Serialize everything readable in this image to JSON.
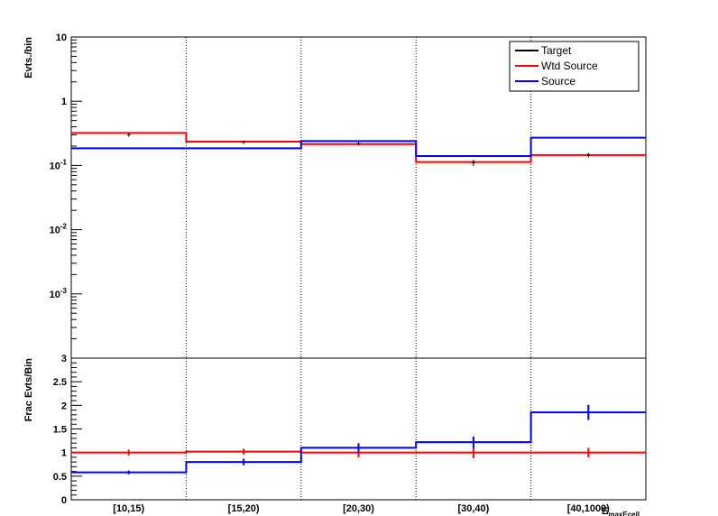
{
  "chart_data": [
    {
      "type": "line",
      "panel": "top",
      "ylabel": "Evts./bin",
      "yscale": "log",
      "ylim": [
        0.0001,
        10
      ],
      "y_tick_labels": [
        {
          "value": 10,
          "base": "10",
          "exp": ""
        },
        {
          "value": 1,
          "base": "1",
          "exp": ""
        },
        {
          "value": 0.1,
          "base": "10",
          "exp": "-1"
        },
        {
          "value": 0.01,
          "base": "10",
          "exp": "-2"
        },
        {
          "value": 0.001,
          "base": "10",
          "exp": "-3"
        }
      ],
      "categories": [
        "[10,15)",
        "[15,20)",
        "[20,30)",
        "[30,40)",
        "[40,1000)"
      ],
      "legend": {
        "position": "top-right",
        "entries": [
          "Target",
          "Wtd Source",
          "Source"
        ]
      },
      "series": [
        {
          "name": "Target",
          "color": "#000000",
          "style": "points",
          "values": [
            0.3,
            0.23,
            0.22,
            0.11,
            0.145
          ],
          "errors": [
            0.02,
            0.015,
            0.015,
            0.012,
            0.012
          ]
        },
        {
          "name": "Wtd Source",
          "color": "#ff0000",
          "style": "step",
          "values": [
            0.32,
            0.235,
            0.215,
            0.113,
            0.145
          ]
        },
        {
          "name": "Source",
          "color": "#0000ff",
          "style": "step",
          "values": [
            0.185,
            0.185,
            0.24,
            0.14,
            0.27
          ]
        }
      ]
    },
    {
      "type": "line",
      "panel": "bottom",
      "ylabel": "Frac Evts/Bin",
      "ylim": [
        0,
        3
      ],
      "y_ticks": [
        0,
        0.5,
        1,
        1.5,
        2,
        2.5,
        3
      ],
      "categories": [
        "[10,15)",
        "[15,20)",
        "[20,30)",
        "[30,40)",
        "[40,1000)"
      ],
      "xlabel": "E_maxEcell",
      "series": [
        {
          "name": "Wtd Source",
          "color": "#ff0000",
          "style": "step",
          "values": [
            1.0,
            1.02,
            1.0,
            1.0,
            1.0
          ],
          "errors": [
            0.06,
            0.06,
            0.1,
            0.12,
            0.1
          ]
        },
        {
          "name": "Source",
          "color": "#0000ff",
          "style": "step",
          "values": [
            0.58,
            0.8,
            1.1,
            1.22,
            1.85
          ],
          "errors": [
            0.04,
            0.07,
            0.1,
            0.12,
            0.16
          ]
        }
      ]
    }
  ]
}
